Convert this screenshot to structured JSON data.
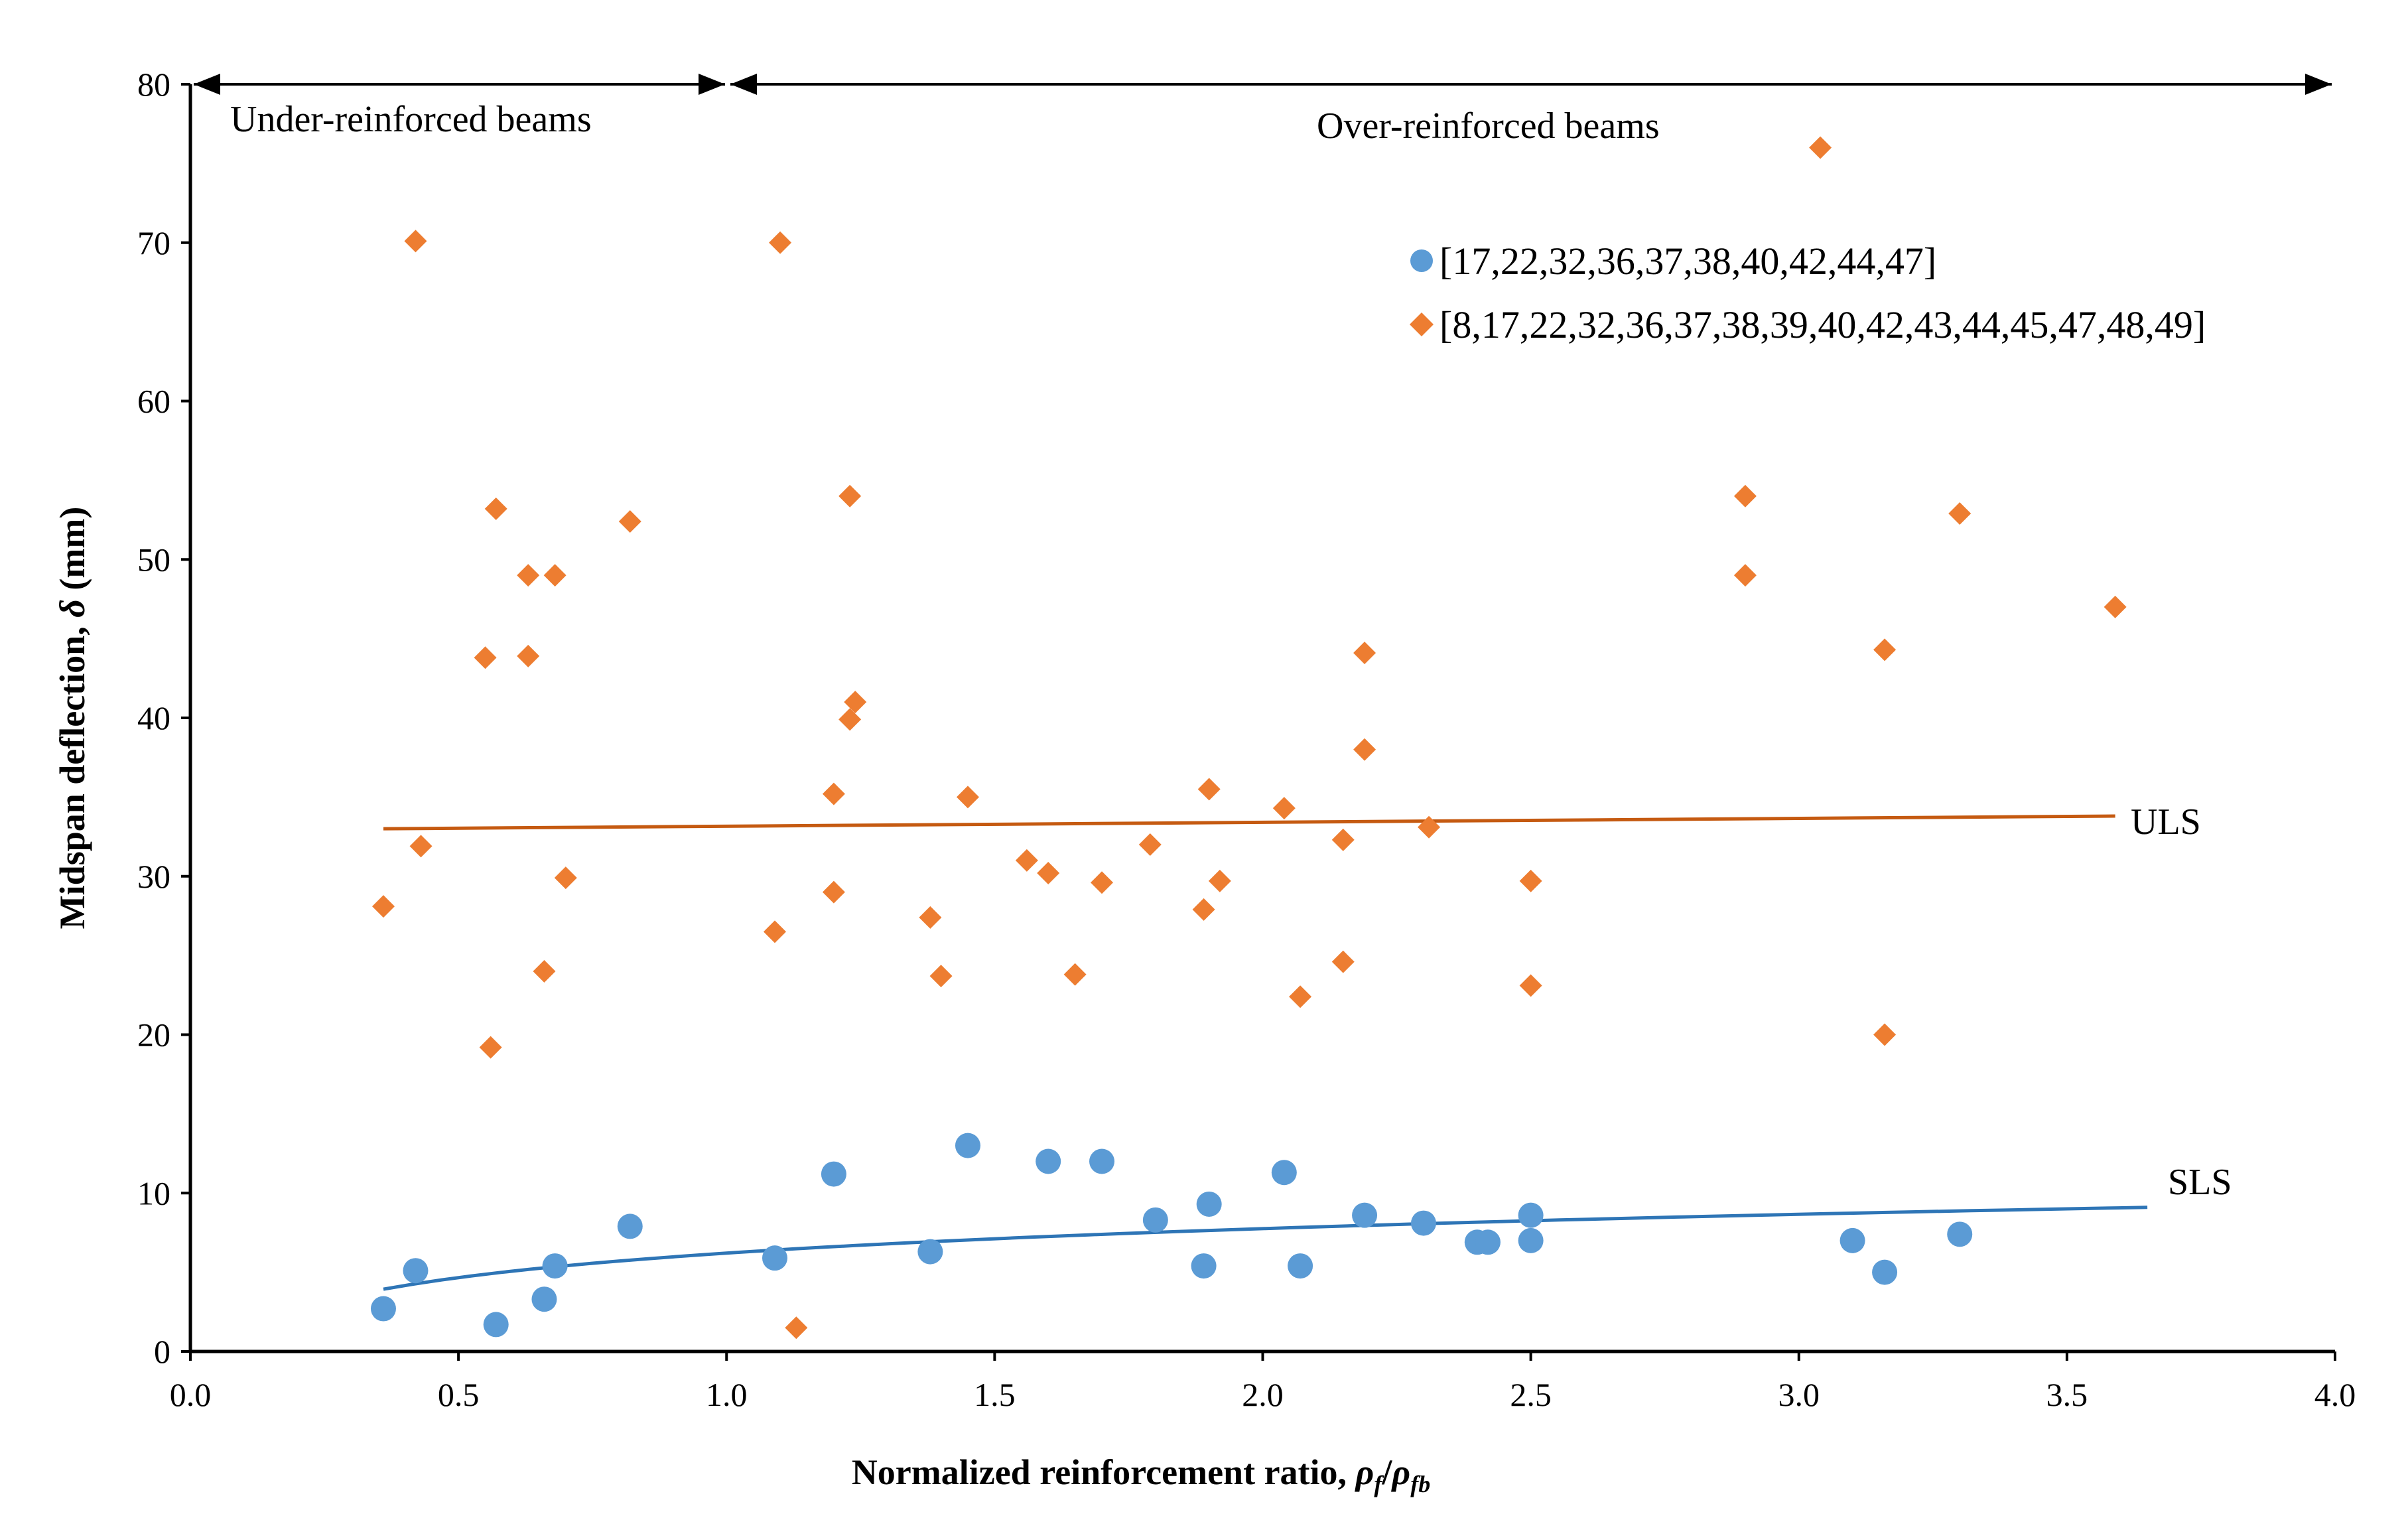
{
  "chart_data": {
    "type": "scatter",
    "title": "",
    "xlabel": "Normalized reinforcement ratio, ",
    "xlabel_symbol": {
      "main": "ρ",
      "sub1": "f",
      "sep": "/",
      "sub2": "fb"
    },
    "ylabel": "Midspan deflection, ",
    "ylabel_symbol": "δ",
    "ylabel_unit": " (mm)",
    "xlim": [
      0,
      4.0
    ],
    "ylim": [
      0,
      80
    ],
    "xticks": [
      0.0,
      0.5,
      1.0,
      1.5,
      2.0,
      2.5,
      3.0,
      3.5,
      4.0
    ],
    "xtick_labels": [
      "0.0",
      "0.5",
      "1.0",
      "1.5",
      "2.0",
      "2.5",
      "3.0",
      "3.5",
      "4.0"
    ],
    "yticks": [
      0,
      10,
      20,
      30,
      40,
      50,
      60,
      70,
      80
    ],
    "ytick_labels": [
      "0",
      "10",
      "20",
      "30",
      "40",
      "50",
      "60",
      "70",
      "80"
    ],
    "grid": false,
    "legend_position": "top-right",
    "colors": {
      "sls": "#5B9BD5",
      "uls": "#ED7D31",
      "sls_line": "#2E75B6",
      "uls_line": "#C55A11",
      "axis": "#000000"
    },
    "annotations": {
      "under": {
        "text": "Under-reinforced beams",
        "x_from": 0.0,
        "x_to": 1.0
      },
      "over": {
        "text": "Over-reinforced beams",
        "x_from": 1.0,
        "x_to": 4.0
      },
      "uls_label": "ULS",
      "sls_label": "SLS"
    },
    "series": [
      {
        "name": "[17,22,32,36,37,38,40,42,44,47]",
        "marker": "circle",
        "color": "#5B9BD5",
        "x": [
          0.36,
          0.42,
          0.57,
          0.66,
          0.68,
          0.82,
          1.09,
          1.2,
          1.38,
          1.45,
          1.6,
          1.7,
          1.8,
          1.89,
          1.9,
          2.04,
          2.07,
          2.19,
          2.3,
          2.4,
          2.42,
          2.5,
          2.5,
          3.1,
          3.16,
          3.3
        ],
        "y": [
          2.7,
          5.1,
          1.7,
          3.3,
          5.4,
          7.9,
          5.9,
          11.2,
          6.3,
          13.0,
          12.0,
          12.0,
          8.3,
          5.4,
          9.3,
          11.3,
          5.4,
          8.6,
          8.1,
          6.9,
          6.9,
          8.6,
          7.0,
          7.0,
          5.0,
          7.4
        ]
      },
      {
        "name": "[8,17,22,32,36,37,38,39,40,42,43,44,45,47,48,49]",
        "marker": "diamond",
        "color": "#ED7D31",
        "x": [
          0.36,
          0.42,
          0.43,
          0.55,
          0.56,
          0.57,
          0.63,
          0.63,
          0.66,
          0.68,
          0.7,
          0.82,
          1.09,
          1.1,
          1.13,
          1.2,
          1.2,
          1.23,
          1.23,
          1.24,
          1.38,
          1.4,
          1.45,
          1.56,
          1.6,
          1.65,
          1.7,
          1.79,
          1.89,
          1.9,
          1.92,
          2.04,
          2.07,
          2.15,
          2.15,
          2.19,
          2.19,
          2.31,
          2.5,
          2.5,
          2.9,
          2.9,
          3.04,
          3.16,
          3.16,
          3.3,
          3.59
        ],
        "y": [
          28.1,
          70.1,
          31.9,
          43.8,
          19.2,
          53.2,
          49.0,
          43.9,
          24.0,
          49.0,
          29.9,
          52.4,
          26.5,
          70.0,
          1.5,
          35.2,
          29.0,
          54.0,
          39.9,
          41.0,
          27.4,
          23.7,
          35.0,
          31.0,
          30.2,
          23.8,
          29.6,
          32.0,
          27.9,
          35.5,
          29.7,
          34.3,
          22.4,
          32.3,
          24.6,
          44.1,
          38.0,
          33.1,
          29.7,
          23.1,
          54.0,
          49.0,
          76.0,
          44.3,
          20.0,
          52.9,
          47.0
        ]
      }
    ],
    "trendlines": [
      {
        "name": "ULS",
        "type": "linear",
        "color": "#C55A11",
        "x_from": 0.36,
        "x_to": 3.59,
        "y_from": 33.0,
        "y_to": 33.8
      },
      {
        "name": "SLS",
        "type": "logarithmic",
        "color": "#2E75B6",
        "x_from": 0.36,
        "x_to": 3.65,
        "a": 6.21,
        "b": 2.23
      }
    ]
  }
}
